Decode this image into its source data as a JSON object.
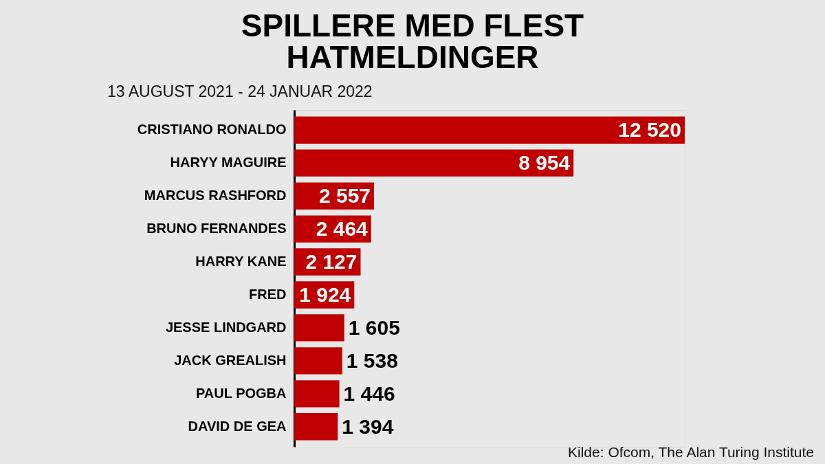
{
  "chart_data": {
    "type": "bar",
    "orientation": "horizontal",
    "title": "SPILLERE MED FLEST HATMELDINGER",
    "subtitle": "13 AUGUST 2021 - 24 JANUAR 2022",
    "categories": [
      "CRISTIANO RONALDO",
      "HARYY MAGUIRE",
      "MARCUS RASHFORD",
      "BRUNO FERNANDES",
      "HARRY KANE",
      "FRED",
      "JESSE LINDGARD",
      "JACK GREALISH",
      "PAUL POGBA",
      "DAVID DE GEA"
    ],
    "values": [
      12520,
      8954,
      2557,
      2464,
      2127,
      1924,
      1605,
      1538,
      1446,
      1394
    ],
    "value_labels": [
      "12 520",
      "8 954",
      "2 557",
      "2 464",
      "2 127",
      "1 924",
      "1 605",
      "1 538",
      "1 446",
      "1 394"
    ],
    "color": "#c00000",
    "annotations": [
      "Kilde: Ofcom, The Alan Turing Institute"
    ]
  }
}
